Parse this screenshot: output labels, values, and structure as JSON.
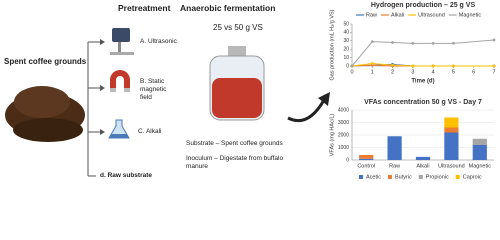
{
  "left": {
    "label": "Spent coffee grounds"
  },
  "pretreatment": {
    "title": "Pretreatment",
    "items": [
      "A. Ultrasonic",
      "B. Static magnetic field",
      "C. Alkali",
      "d. Raw substrate"
    ]
  },
  "fermentation": {
    "title": "Anaerobic fermentation",
    "subtitle": "25 vs 50 g VS",
    "substrate": "Substrate – Spent coffee grounds",
    "inoculum": "Inoculum – Digestate from buffalo manure"
  },
  "chart_data": [
    {
      "type": "line",
      "title": "Hydrogen production – 25 g VS",
      "x_label": "Time (d)",
      "y_label": "Gas production (mL H₂/g VS)",
      "x": [
        0,
        1,
        2,
        3,
        4,
        5,
        7
      ],
      "xlim": [
        0,
        7
      ],
      "xticks": [
        0,
        1,
        2,
        3,
        4,
        5,
        6,
        7
      ],
      "ylim": [
        0,
        50
      ],
      "yticks": [
        0,
        10,
        20,
        30,
        40,
        50
      ],
      "grid": false,
      "series": [
        {
          "name": "Raw",
          "color": "#4472c4",
          "values": [
            0,
            1,
            2,
            0,
            0,
            0,
            0
          ]
        },
        {
          "name": "Alkali",
          "color": "#ed7d31",
          "values": [
            0,
            1,
            0,
            0,
            0,
            0,
            0
          ]
        },
        {
          "name": "Ultrasound",
          "color": "#ffc000",
          "values": [
            0,
            3,
            1,
            0,
            0,
            0,
            0
          ]
        },
        {
          "name": "Magnetic",
          "color": "#a5a5a5",
          "values": [
            0,
            29,
            28,
            27,
            27,
            27,
            31
          ]
        }
      ]
    },
    {
      "type": "bar",
      "title": "VFAs concentration 50 g VS - Day 7",
      "y_label": "VFAs (mg HAc/L)",
      "categories": [
        "Control",
        "Raw",
        "Alkali",
        "Ultrasound",
        "Magnetic"
      ],
      "ylim": [
        0,
        4000
      ],
      "yticks": [
        0,
        1000,
        2000,
        3000,
        4000
      ],
      "grid": true,
      "stacked": true,
      "series": [
        {
          "name": "Acetic",
          "color": "#4472c4",
          "values": [
            100,
            1900,
            250,
            2200,
            1200
          ]
        },
        {
          "name": "Butyric",
          "color": "#ed7d31",
          "values": [
            300,
            0,
            0,
            400,
            0
          ]
        },
        {
          "name": "Propionic",
          "color": "#a5a5a5",
          "values": [
            0,
            0,
            0,
            0,
            500
          ]
        },
        {
          "name": "Caproic",
          "color": "#ffc000",
          "values": [
            0,
            0,
            0,
            800,
            0
          ]
        }
      ]
    }
  ]
}
